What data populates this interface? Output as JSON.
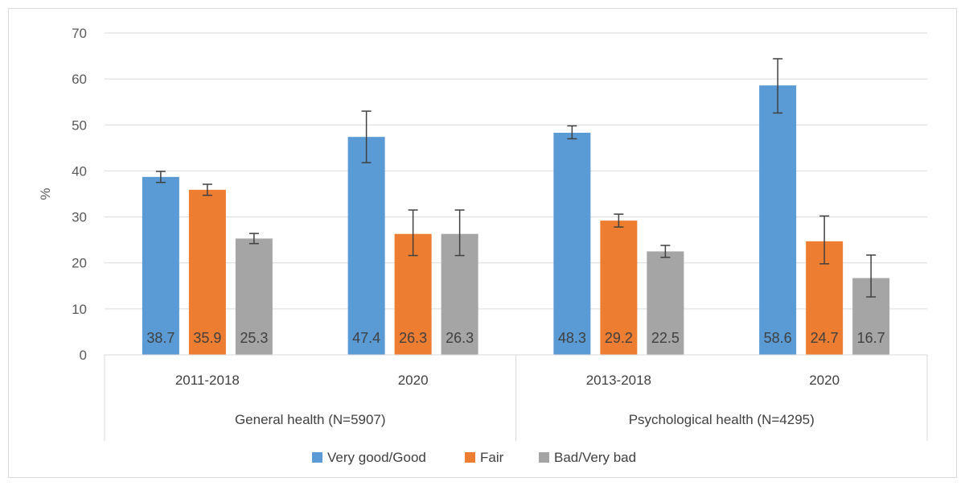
{
  "chart_data": {
    "type": "bar",
    "title": "",
    "ylabel": "%",
    "ylim": [
      0,
      70
    ],
    "yticks": [
      0,
      10,
      20,
      30,
      40,
      50,
      60,
      70
    ],
    "grid": true,
    "legend_position": "bottom",
    "groups": [
      {
        "label": "General health (N=5907)",
        "categories": [
          "2011-2018",
          "2020"
        ]
      },
      {
        "label": "Psychological health (N=4295)",
        "categories": [
          "2013-2018",
          "2020"
        ]
      }
    ],
    "categories": [
      "2011-2018",
      "2020",
      "2013-2018",
      "2020"
    ],
    "series": [
      {
        "name": "Very good/Good",
        "color": "#5B9BD5",
        "values": [
          38.7,
          47.4,
          48.3,
          58.6
        ],
        "labels": [
          "38.7",
          "47.4",
          "48.3",
          "58.6"
        ],
        "err_low": [
          37.5,
          41.8,
          47.0,
          52.6
        ],
        "err_high": [
          39.9,
          53.0,
          49.8,
          64.4
        ]
      },
      {
        "name": "Fair",
        "color": "#ED7D31",
        "values": [
          35.9,
          26.3,
          29.2,
          24.7
        ],
        "labels": [
          "35.9",
          "26.3",
          "29.2",
          "24.7"
        ],
        "err_low": [
          34.7,
          21.6,
          27.8,
          19.8
        ],
        "err_high": [
          37.1,
          31.5,
          30.6,
          30.2
        ]
      },
      {
        "name": "Bad/Very bad",
        "color": "#A5A5A5",
        "values": [
          25.3,
          26.3,
          22.5,
          16.7
        ],
        "labels": [
          "25.3",
          "26.3",
          "22.5",
          "16.7"
        ],
        "err_low": [
          24.2,
          21.6,
          21.2,
          12.6
        ],
        "err_high": [
          26.4,
          31.5,
          23.8,
          21.7
        ]
      }
    ]
  }
}
